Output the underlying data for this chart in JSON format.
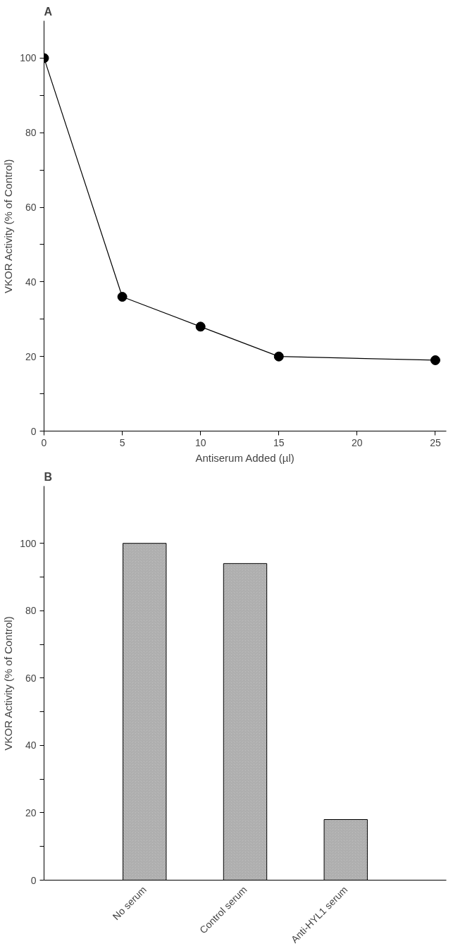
{
  "chart_data": [
    {
      "type": "line",
      "title": "A",
      "xlabel": "Antiserum Added (µl)",
      "ylabel": "VKOR Activity (% of Control)",
      "x": [
        0,
        5,
        10,
        15,
        25
      ],
      "values": [
        100,
        36,
        28,
        20,
        19
      ],
      "color": "#000000",
      "marker": "circle",
      "line_style": "solid",
      "xlim": [
        0,
        25.7
      ],
      "ylim": [
        0,
        110
      ],
      "xticks": [
        0,
        5,
        10,
        15,
        20,
        25
      ],
      "yticks": [
        0,
        {
          "value": 10,
          "label": null
        },
        20,
        {
          "value": 30,
          "label": null
        },
        40,
        {
          "value": 50,
          "label": null
        },
        60,
        {
          "value": 70,
          "label": null
        },
        80,
        {
          "value": 90,
          "label": null
        },
        100
      ],
      "grid": false
    },
    {
      "type": "bar",
      "title": "B",
      "ylabel": "VKOR Activity (% of Control)",
      "categories": [
        "No serum",
        "Control serum",
        "Anti-HYL1 serum"
      ],
      "values": [
        100,
        94,
        18
      ],
      "color": "#bfbfbf",
      "ylim": [
        0,
        117
      ],
      "yticks": [
        0,
        {
          "value": 10,
          "label": null
        },
        20,
        {
          "value": 30,
          "label": null
        },
        40,
        {
          "value": 50,
          "label": null
        },
        60,
        {
          "value": 70,
          "label": null
        },
        80,
        {
          "value": 90,
          "label": null
        },
        100
      ],
      "grid": false
    }
  ]
}
